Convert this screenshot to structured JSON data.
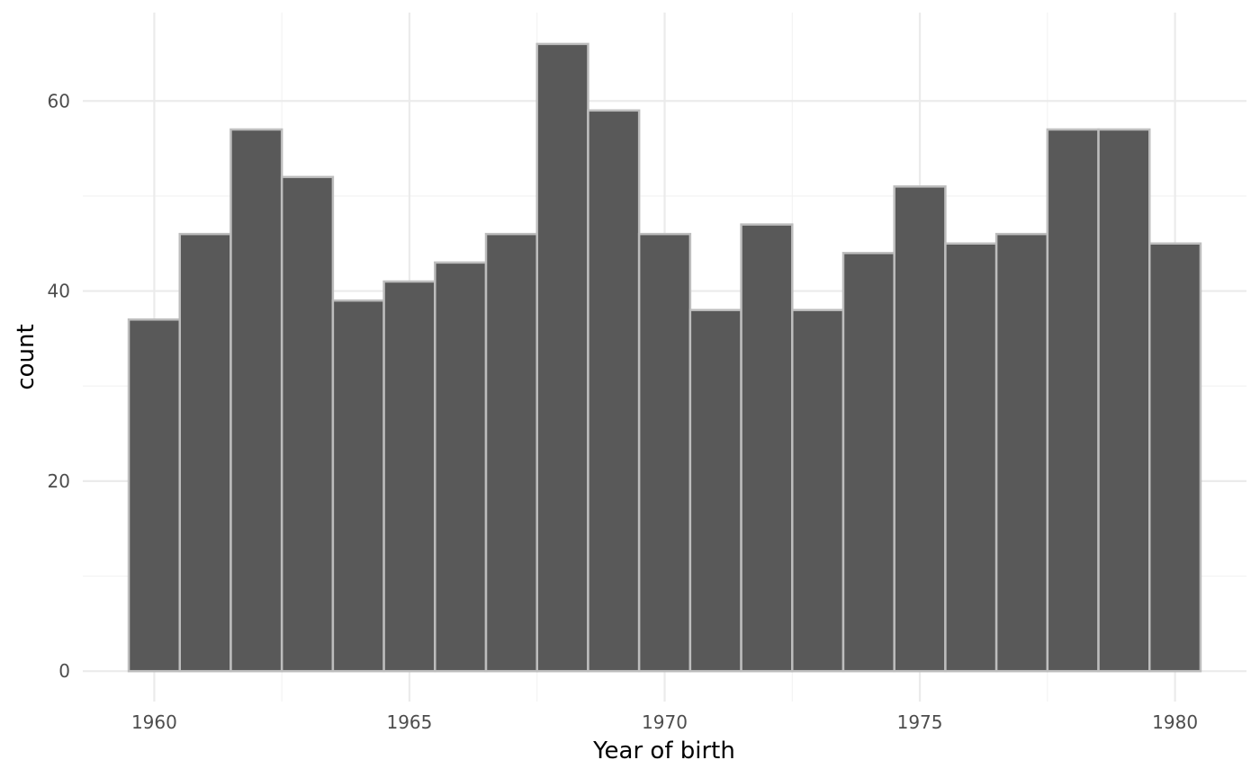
{
  "chart_data": {
    "type": "bar",
    "subtype": "histogram",
    "xlabel": "Year of birth",
    "ylabel": "count",
    "x": [
      1960,
      1961,
      1962,
      1963,
      1964,
      1965,
      1966,
      1967,
      1968,
      1969,
      1970,
      1971,
      1972,
      1973,
      1974,
      1975,
      1976,
      1977,
      1978,
      1979,
      1980
    ],
    "values": [
      37,
      46,
      57,
      52,
      39,
      41,
      43,
      46,
      66,
      59,
      46,
      38,
      47,
      38,
      44,
      51,
      45,
      46,
      57,
      57,
      45
    ],
    "bin_width": 1,
    "xlim": [
      1958.6,
      1981.4
    ],
    "ylim": [
      -3.2,
      69.3
    ],
    "x_ticks": [
      1960,
      1965,
      1970,
      1975,
      1980
    ],
    "x_tick_labels": [
      "1960",
      "1965",
      "1970",
      "1975",
      "1980"
    ],
    "y_ticks": [
      0,
      20,
      40,
      60
    ],
    "y_tick_labels": [
      "0",
      "20",
      "40",
      "60"
    ],
    "grid": true,
    "legend": "none",
    "colors": {
      "bar_fill": "#595959",
      "bar_outline": "#bdbdbd",
      "grid": "#ebebeb",
      "background": "#ffffff"
    }
  }
}
